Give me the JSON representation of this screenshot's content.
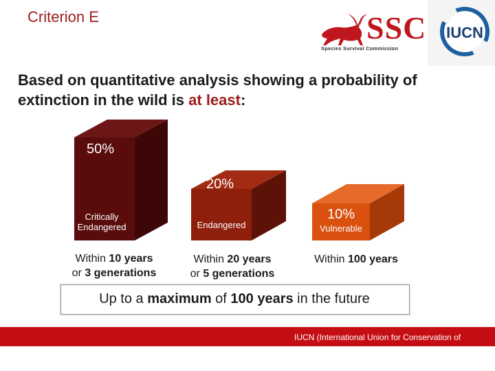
{
  "slide": {
    "criterion": "Criterion E",
    "heading": {
      "text_before": "Based on quantitative analysis showing a probability of extinction in the wild is ",
      "highlight": "at least",
      "text_after": ":"
    },
    "logos": {
      "ssc_wordmark": "SSC",
      "ssc_subtitle": "Species Survival Commission",
      "iucn_wordmark": "IUCN"
    },
    "categories": [
      {
        "percent": "50%",
        "name_line1": "Critically",
        "name_line2": "Endangered",
        "time_line1_prefix": "Within ",
        "time_line1_bold": "10 years",
        "time_line2_prefix": "or ",
        "time_line2_bold": "3 generations",
        "color": "#5a0c0c"
      },
      {
        "percent": "20%",
        "name_line1": "Endangered",
        "time_line1_prefix": "Within ",
        "time_line1_bold": "20 years",
        "time_line2_prefix": "or ",
        "time_line2_bold": "5 generations",
        "color": "#8e1f0c"
      },
      {
        "percent": "10%",
        "name_line1": "Vulnerable",
        "time_line1_prefix": "Within ",
        "time_line1_bold": "100 years",
        "color": "#d9500f"
      }
    ],
    "footer": {
      "prefix": "Up to a ",
      "bold1": "maximum",
      "middle": " of ",
      "bold2": "100 years",
      "suffix": " in the future"
    },
    "bottom_bar": "IUCN (International Union for Conservation of",
    "colors": {
      "accent_red": "#9a1c1c",
      "bar_red": "#c40e14"
    }
  }
}
